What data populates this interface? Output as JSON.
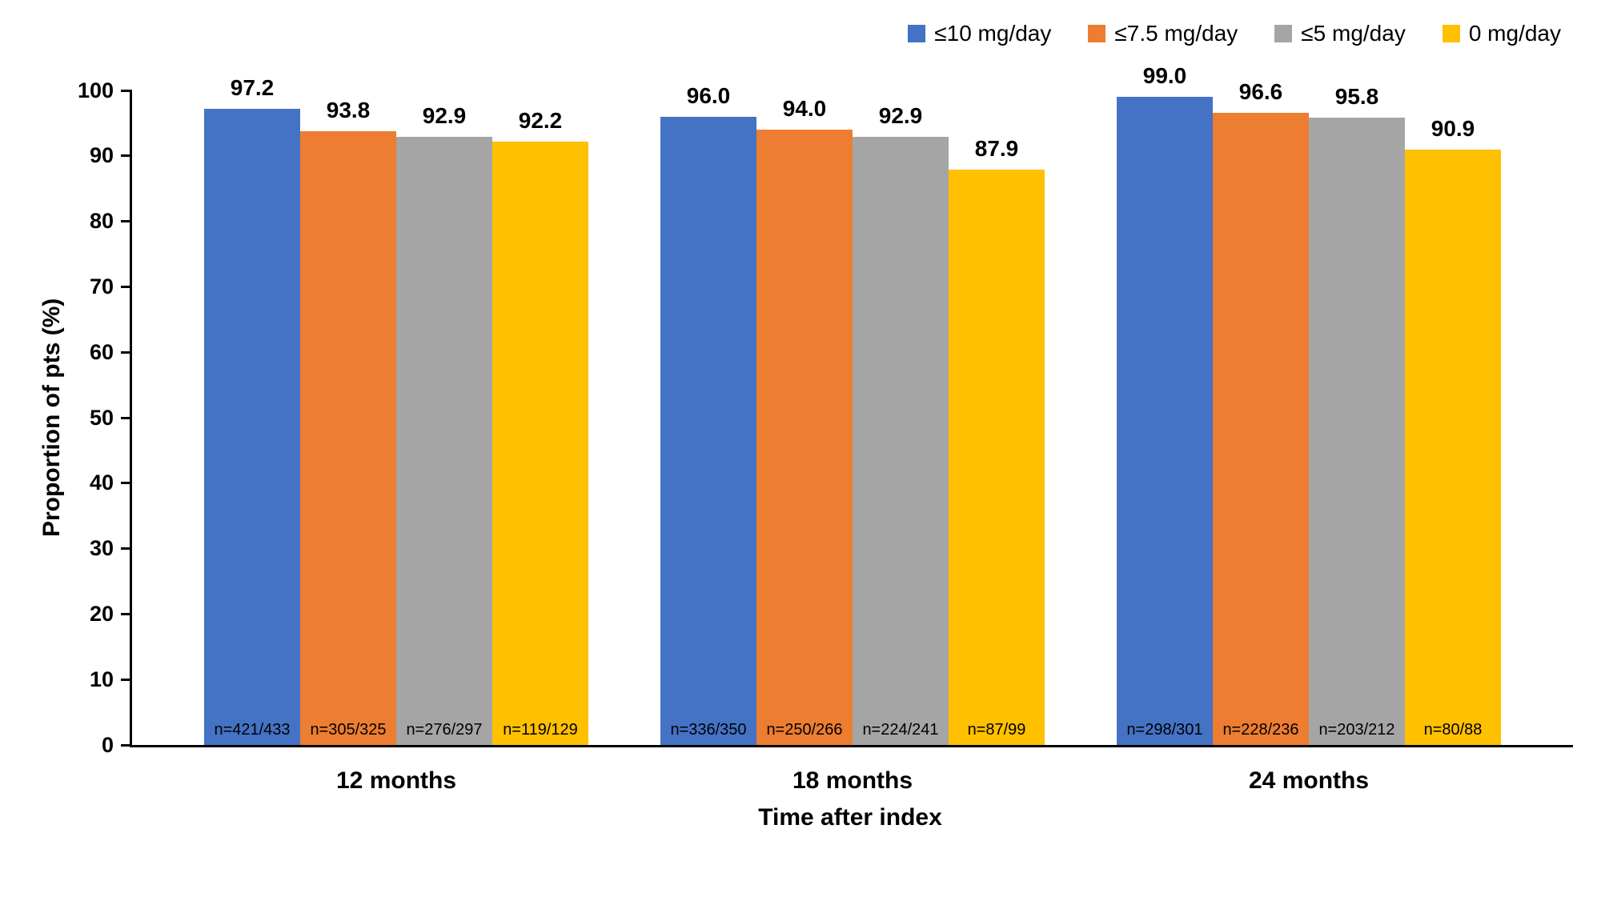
{
  "figure": {
    "background": "#ffffff",
    "axis_color": "#000000"
  },
  "chart_data": {
    "type": "bar",
    "title": "",
    "xlabel": "Time after index",
    "ylabel": "Proportion of pts (%)",
    "ylim": [
      0,
      100
    ],
    "ytick_step": 10,
    "grid": false,
    "legend_position": "top-right",
    "value_label_format": "one_decimal",
    "categories": [
      "12 months",
      "18 months",
      "24 months"
    ],
    "series": [
      {
        "name": "≤10 mg/day",
        "color": "#4472C4",
        "values": [
          97.2,
          96.0,
          99.0
        ],
        "n_labels": [
          "n=421/433",
          "n=336/350",
          "n=298/301"
        ]
      },
      {
        "name": "≤7.5 mg/day",
        "color": "#ED7D31",
        "values": [
          93.8,
          94.0,
          96.6
        ],
        "n_labels": [
          "n=305/325",
          "n=250/266",
          "n=228/236"
        ]
      },
      {
        "name": "≤5 mg/day",
        "color": "#A5A5A5",
        "values": [
          92.9,
          92.9,
          95.8
        ],
        "n_labels": [
          "n=276/297",
          "n=224/241",
          "n=203/212"
        ]
      },
      {
        "name": "0 mg/day",
        "color": "#FFC000",
        "values": [
          92.2,
          87.9,
          90.9
        ],
        "n_labels": [
          "n=119/129",
          "n=87/99",
          "n=80/88"
        ]
      }
    ]
  }
}
